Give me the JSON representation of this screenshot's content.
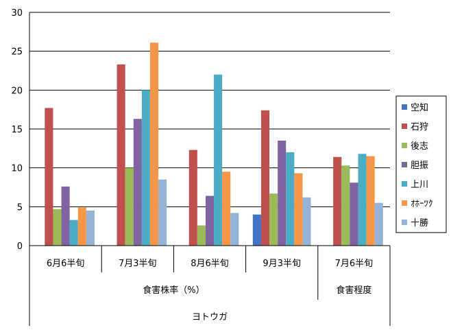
{
  "chart_data": {
    "type": "bar",
    "title": "",
    "ylim": [
      0,
      30
    ],
    "yticks": [
      "0",
      "5",
      "10",
      "15",
      "20",
      "25",
      "30"
    ],
    "grid": true,
    "legend_position": "right",
    "categories": [
      "6月6半旬",
      "7月3半旬",
      "8月6半旬",
      "9月3半旬",
      "7月6半旬"
    ],
    "groups": [
      {
        "label": "食害株率（%）",
        "span": [
          0,
          3
        ]
      },
      {
        "label": "食害程度",
        "span": [
          4,
          4
        ]
      }
    ],
    "top_group": "ヨトウガ",
    "series": [
      {
        "name": "空知",
        "color": "#4472C4",
        "values": [
          null,
          null,
          null,
          4.0,
          null
        ]
      },
      {
        "name": "石狩",
        "color": "#C0504D",
        "values": [
          17.7,
          23.3,
          12.3,
          17.4,
          11.4
        ]
      },
      {
        "name": "後志",
        "color": "#9BBB59",
        "values": [
          4.7,
          10.0,
          2.6,
          6.7,
          10.3
        ]
      },
      {
        "name": "胆振",
        "color": "#8064A2",
        "values": [
          7.6,
          16.3,
          6.4,
          13.5,
          8.1
        ]
      },
      {
        "name": "上川",
        "color": "#4BACC6",
        "values": [
          3.3,
          20.0,
          22.0,
          12.0,
          11.8
        ]
      },
      {
        "name": "ｵﾎｰﾂｸ",
        "color": "#F79646",
        "values": [
          4.9,
          26.1,
          9.5,
          9.3,
          11.5
        ]
      },
      {
        "name": "十勝",
        "color": "#95B3D7",
        "values": [
          4.5,
          8.5,
          4.2,
          6.2,
          5.5
        ]
      }
    ]
  }
}
